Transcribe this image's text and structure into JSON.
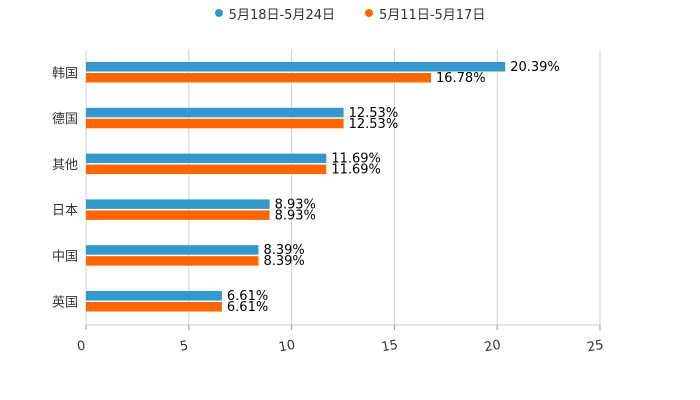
{
  "chart_data": {
    "type": "bar",
    "orientation": "horizontal",
    "categories": [
      "韩国",
      "德国",
      "其他",
      "日本",
      "中国",
      "英国"
    ],
    "series": [
      {
        "name": "5月18日-5月24日",
        "color": "#3399cc",
        "values": [
          20.39,
          12.53,
          11.69,
          8.93,
          8.39,
          6.61
        ],
        "labels": [
          "20.39%",
          "12.53%",
          "11.69%",
          "8.93%",
          "8.39%",
          "6.61%"
        ]
      },
      {
        "name": "5月11日-5月17日",
        "color": "#ff6600",
        "values": [
          16.78,
          12.53,
          11.69,
          8.93,
          8.39,
          6.61
        ],
        "labels": [
          "16.78%",
          "12.53%",
          "11.69%",
          "8.93%",
          "8.39%",
          "6.61%"
        ]
      }
    ],
    "xlim": [
      0,
      25
    ],
    "xticks": [
      0,
      5,
      10,
      15,
      20,
      25
    ],
    "xtick_labels": [
      "0",
      "5",
      "10",
      "15",
      "20",
      "25"
    ],
    "grid": true,
    "legend_position": "top-center"
  }
}
